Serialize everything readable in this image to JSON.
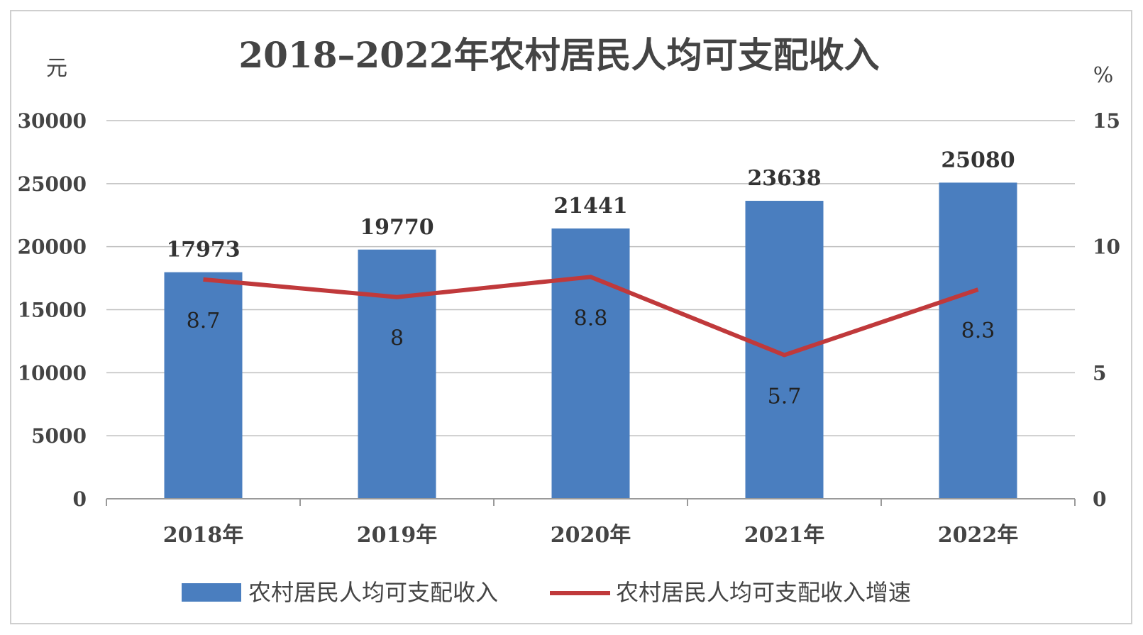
{
  "chart_data": {
    "type": "bar",
    "title": "2018–2022年农村居民人均可支配收入",
    "ylabel_left": "元",
    "ylabel_right": "%",
    "categories": [
      "2018年",
      "2019年",
      "2020年",
      "2021年",
      "2022年"
    ],
    "ylim_left": [
      0,
      30000
    ],
    "yticks_left": [
      "0",
      "5000",
      "10000",
      "15000",
      "20000",
      "25000",
      "30000"
    ],
    "ylim_right": [
      0,
      15
    ],
    "yticks_right": [
      "0",
      "5",
      "10",
      "15"
    ],
    "grid": true,
    "legend_position": "bottom",
    "series": [
      {
        "name": "农村居民人均可支配收入",
        "type": "bar",
        "axis": "left",
        "color": "#4a7ebf",
        "values": [
          17973,
          19770,
          21441,
          23638,
          25080
        ],
        "labels": [
          "17973",
          "19770",
          "21441",
          "23638",
          "25080"
        ]
      },
      {
        "name": "农村居民人均可支配收入增速",
        "type": "line",
        "axis": "right",
        "color": "#c0393b",
        "values": [
          8.7,
          8,
          8.8,
          5.7,
          8.3
        ],
        "labels": [
          "8.7",
          "8",
          "8.8",
          "5.7",
          "8.3"
        ]
      }
    ]
  }
}
